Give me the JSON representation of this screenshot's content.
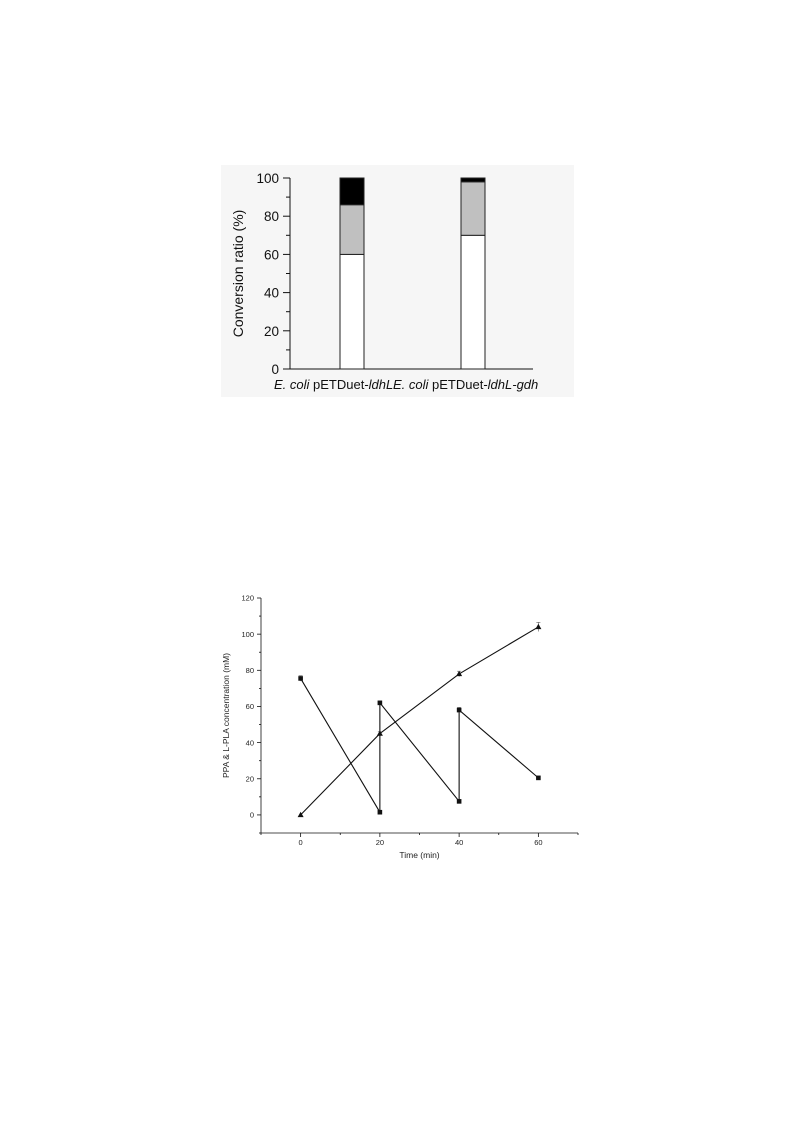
{
  "chart_data": [
    {
      "type": "bar",
      "stacked": true,
      "title": "",
      "xlabel": "",
      "ylabel": "Conversion ratio (%)",
      "ylim": [
        0,
        100
      ],
      "yticks": [
        0,
        20,
        40,
        60,
        80,
        100
      ],
      "grid": false,
      "categories": [
        {
          "italic_prefix": "E. coli",
          "plain": " pETDuet-",
          "italic_suffix": "ldhL"
        },
        {
          "italic_prefix": "E. coli",
          "plain": " pETDuet-",
          "italic_suffix": "ldhL-gdh"
        }
      ],
      "series": [
        {
          "color": "#ffffff",
          "values": [
            60,
            70
          ]
        },
        {
          "color": "#c0c0c0",
          "values": [
            26,
            28
          ]
        },
        {
          "color": "#000000",
          "values": [
            14,
            2
          ]
        }
      ]
    },
    {
      "type": "line",
      "title": "",
      "xlabel": "Time (min)",
      "ylabel": "PPA & L-PLA concentration (mM)",
      "xlim": [
        -10,
        70
      ],
      "ylim": [
        -10,
        120
      ],
      "xticks": [
        0,
        20,
        40,
        60
      ],
      "yticks": [
        0,
        20,
        40,
        60,
        80,
        100,
        120
      ],
      "grid": false,
      "series": [
        {
          "marker": "square",
          "x": [
            0,
            20,
            20,
            40,
            40,
            60
          ],
          "y": [
            75.5,
            1.5,
            62,
            7.5,
            58,
            20.5
          ],
          "error": [
            1.5,
            0.5,
            1,
            0.5,
            1.5,
            0.5
          ]
        },
        {
          "marker": "triangle",
          "x": [
            0,
            20,
            40,
            60
          ],
          "y": [
            0,
            45,
            78,
            104
          ],
          "error": [
            0,
            1,
            1.5,
            2.5
          ]
        }
      ]
    }
  ]
}
